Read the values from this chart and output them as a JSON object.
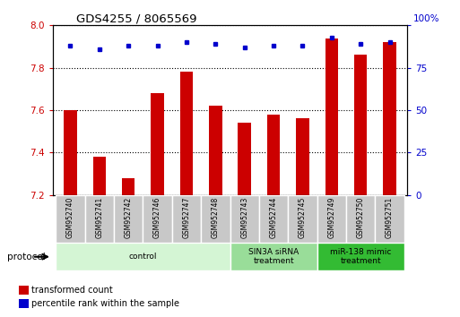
{
  "title": "GDS4255 / 8065569",
  "samples": [
    "GSM952740",
    "GSM952741",
    "GSM952742",
    "GSM952746",
    "GSM952747",
    "GSM952748",
    "GSM952743",
    "GSM952744",
    "GSM952745",
    "GSM952749",
    "GSM952750",
    "GSM952751"
  ],
  "red_values": [
    7.6,
    7.38,
    7.28,
    7.68,
    7.78,
    7.62,
    7.54,
    7.58,
    7.56,
    7.94,
    7.86,
    7.92
  ],
  "blue_values": [
    88,
    86,
    88,
    88,
    90,
    89,
    87,
    88,
    88,
    93,
    89,
    90
  ],
  "ylim_left": [
    7.2,
    8.0
  ],
  "ylim_right": [
    0,
    100
  ],
  "yticks_left": [
    7.2,
    7.4,
    7.6,
    7.8,
    8.0
  ],
  "yticks_right": [
    0,
    25,
    50,
    75,
    100
  ],
  "groups": [
    {
      "label": "control",
      "start": 0,
      "end": 6,
      "color": "#d4f5d4"
    },
    {
      "label": "SIN3A siRNA\ntreatment",
      "start": 6,
      "end": 9,
      "color": "#99dd99"
    },
    {
      "label": "miR-138 mimic\ntreatment",
      "start": 9,
      "end": 12,
      "color": "#33bb33"
    }
  ],
  "red_color": "#cc0000",
  "blue_color": "#0000cc",
  "bar_bottom": 7.2,
  "protocol_label": "protocol",
  "legend_red": "transformed count",
  "legend_blue": "percentile rank within the sample",
  "grid_color": "black",
  "bar_width": 0.45
}
